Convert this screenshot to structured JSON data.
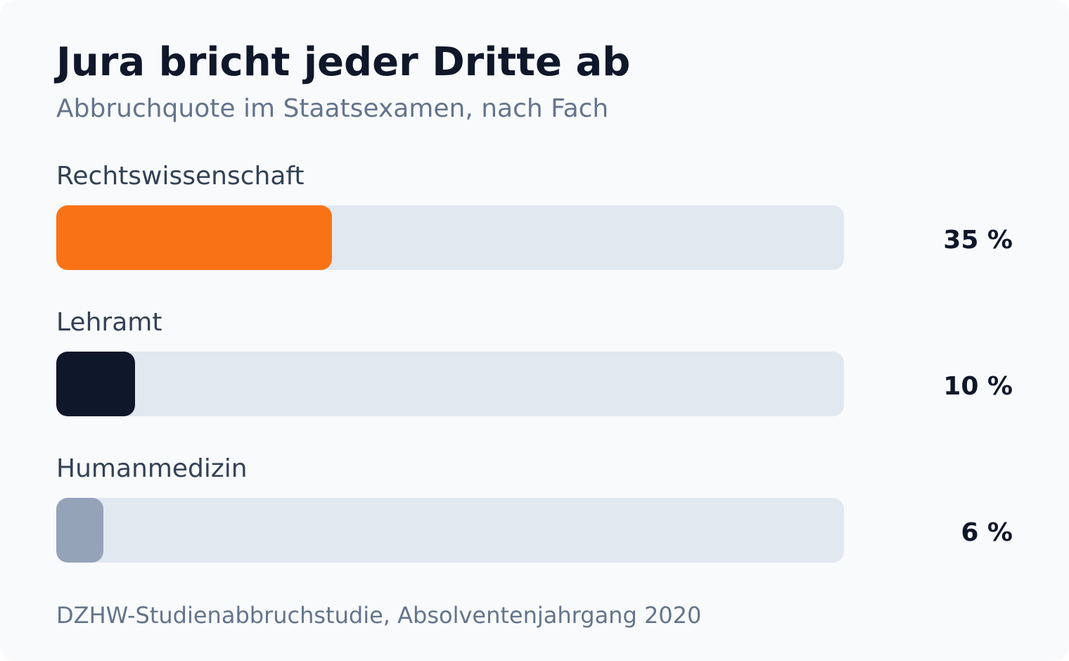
{
  "title": "Jura bricht jeder Dritte ab",
  "subtitle": "Abbruchquote im Staatsexamen, nach Fach",
  "source": "DZHW-Studienabbruchstudie, Absolventenjahrgang 2020",
  "colors": {
    "highlight": "#f97316",
    "dark": "#0f172a",
    "muted": "#94a3b8",
    "track": "#e2e8f0"
  },
  "rows": [
    {
      "label": "Rechtswissenschaft",
      "value_text": "35 %"
    },
    {
      "label": "Lehramt",
      "value_text": "10 %"
    },
    {
      "label": "Humanmedizin",
      "value_text": "6 %"
    }
  ],
  "chart_data": {
    "type": "bar",
    "orientation": "horizontal",
    "title": "Jura bricht jeder Dritte ab",
    "subtitle": "Abbruchquote im Staatsexamen, nach Fach",
    "categories": [
      "Rechtswissenschaft",
      "Lehramt",
      "Humanmedizin"
    ],
    "values": [
      35,
      10,
      6
    ],
    "unit": "%",
    "xlim": [
      0,
      100
    ],
    "bar_colors": [
      "#f97316",
      "#0f172a",
      "#94a3b8"
    ],
    "grid": false,
    "legend": "none"
  }
}
